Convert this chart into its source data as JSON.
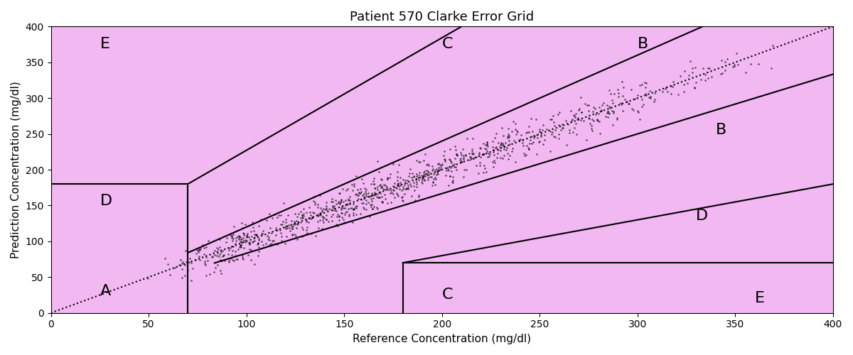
{
  "title": "Patient 570 Clarke Error Grid",
  "xlabel": "Reference Concentration (mg/dl)",
  "ylabel": "Prediction Concentration (mg/dl)",
  "xlim": [
    0,
    400
  ],
  "ylim": [
    0,
    400
  ],
  "zone_color": "#ffb3ff",
  "zone_color_light": "#f5c2f5",
  "bg_color": "#f5c2f5",
  "scatter_color": "black",
  "scatter_size": 4,
  "scatter_alpha": 0.8,
  "title_fontsize": 14,
  "label_fontsize": 12,
  "zone_label_fontsize": 15,
  "figsize": [
    12,
    5
  ],
  "dpi": 100
}
